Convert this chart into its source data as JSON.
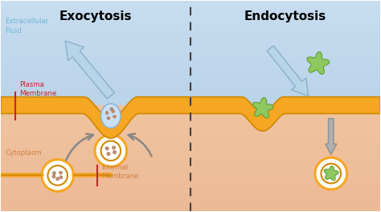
{
  "title_exo": "Exocytosis",
  "title_endo": "Endocytosis",
  "label_extracellular": "Extracellular\nFluid",
  "label_plasma": "Plasma\nMembrane",
  "label_cytoplasm": "Cytoplasm",
  "label_internal": "Internal\nMembrane",
  "bg_top_color": "#c8ddf0",
  "bg_bottom_color": "#f0c4a0",
  "membrane_color": "#f5a623",
  "membrane_edge": "#d08800",
  "arrow_fill": "#b8d4e8",
  "arrow_edge": "#8ab0cc",
  "gray_arrow": "#b0b0b0",
  "vesicle_fill": "#c8dff5",
  "dot_color": "#c09070",
  "green_blob": "#90c860",
  "green_edge": "#60a030",
  "label_color_blue": "#70b8d8",
  "label_color_red": "#cc2222",
  "label_color_orange": "#d08040",
  "divider_color": "#404040",
  "fig_width": 4.74,
  "fig_height": 2.64,
  "dpi": 100
}
